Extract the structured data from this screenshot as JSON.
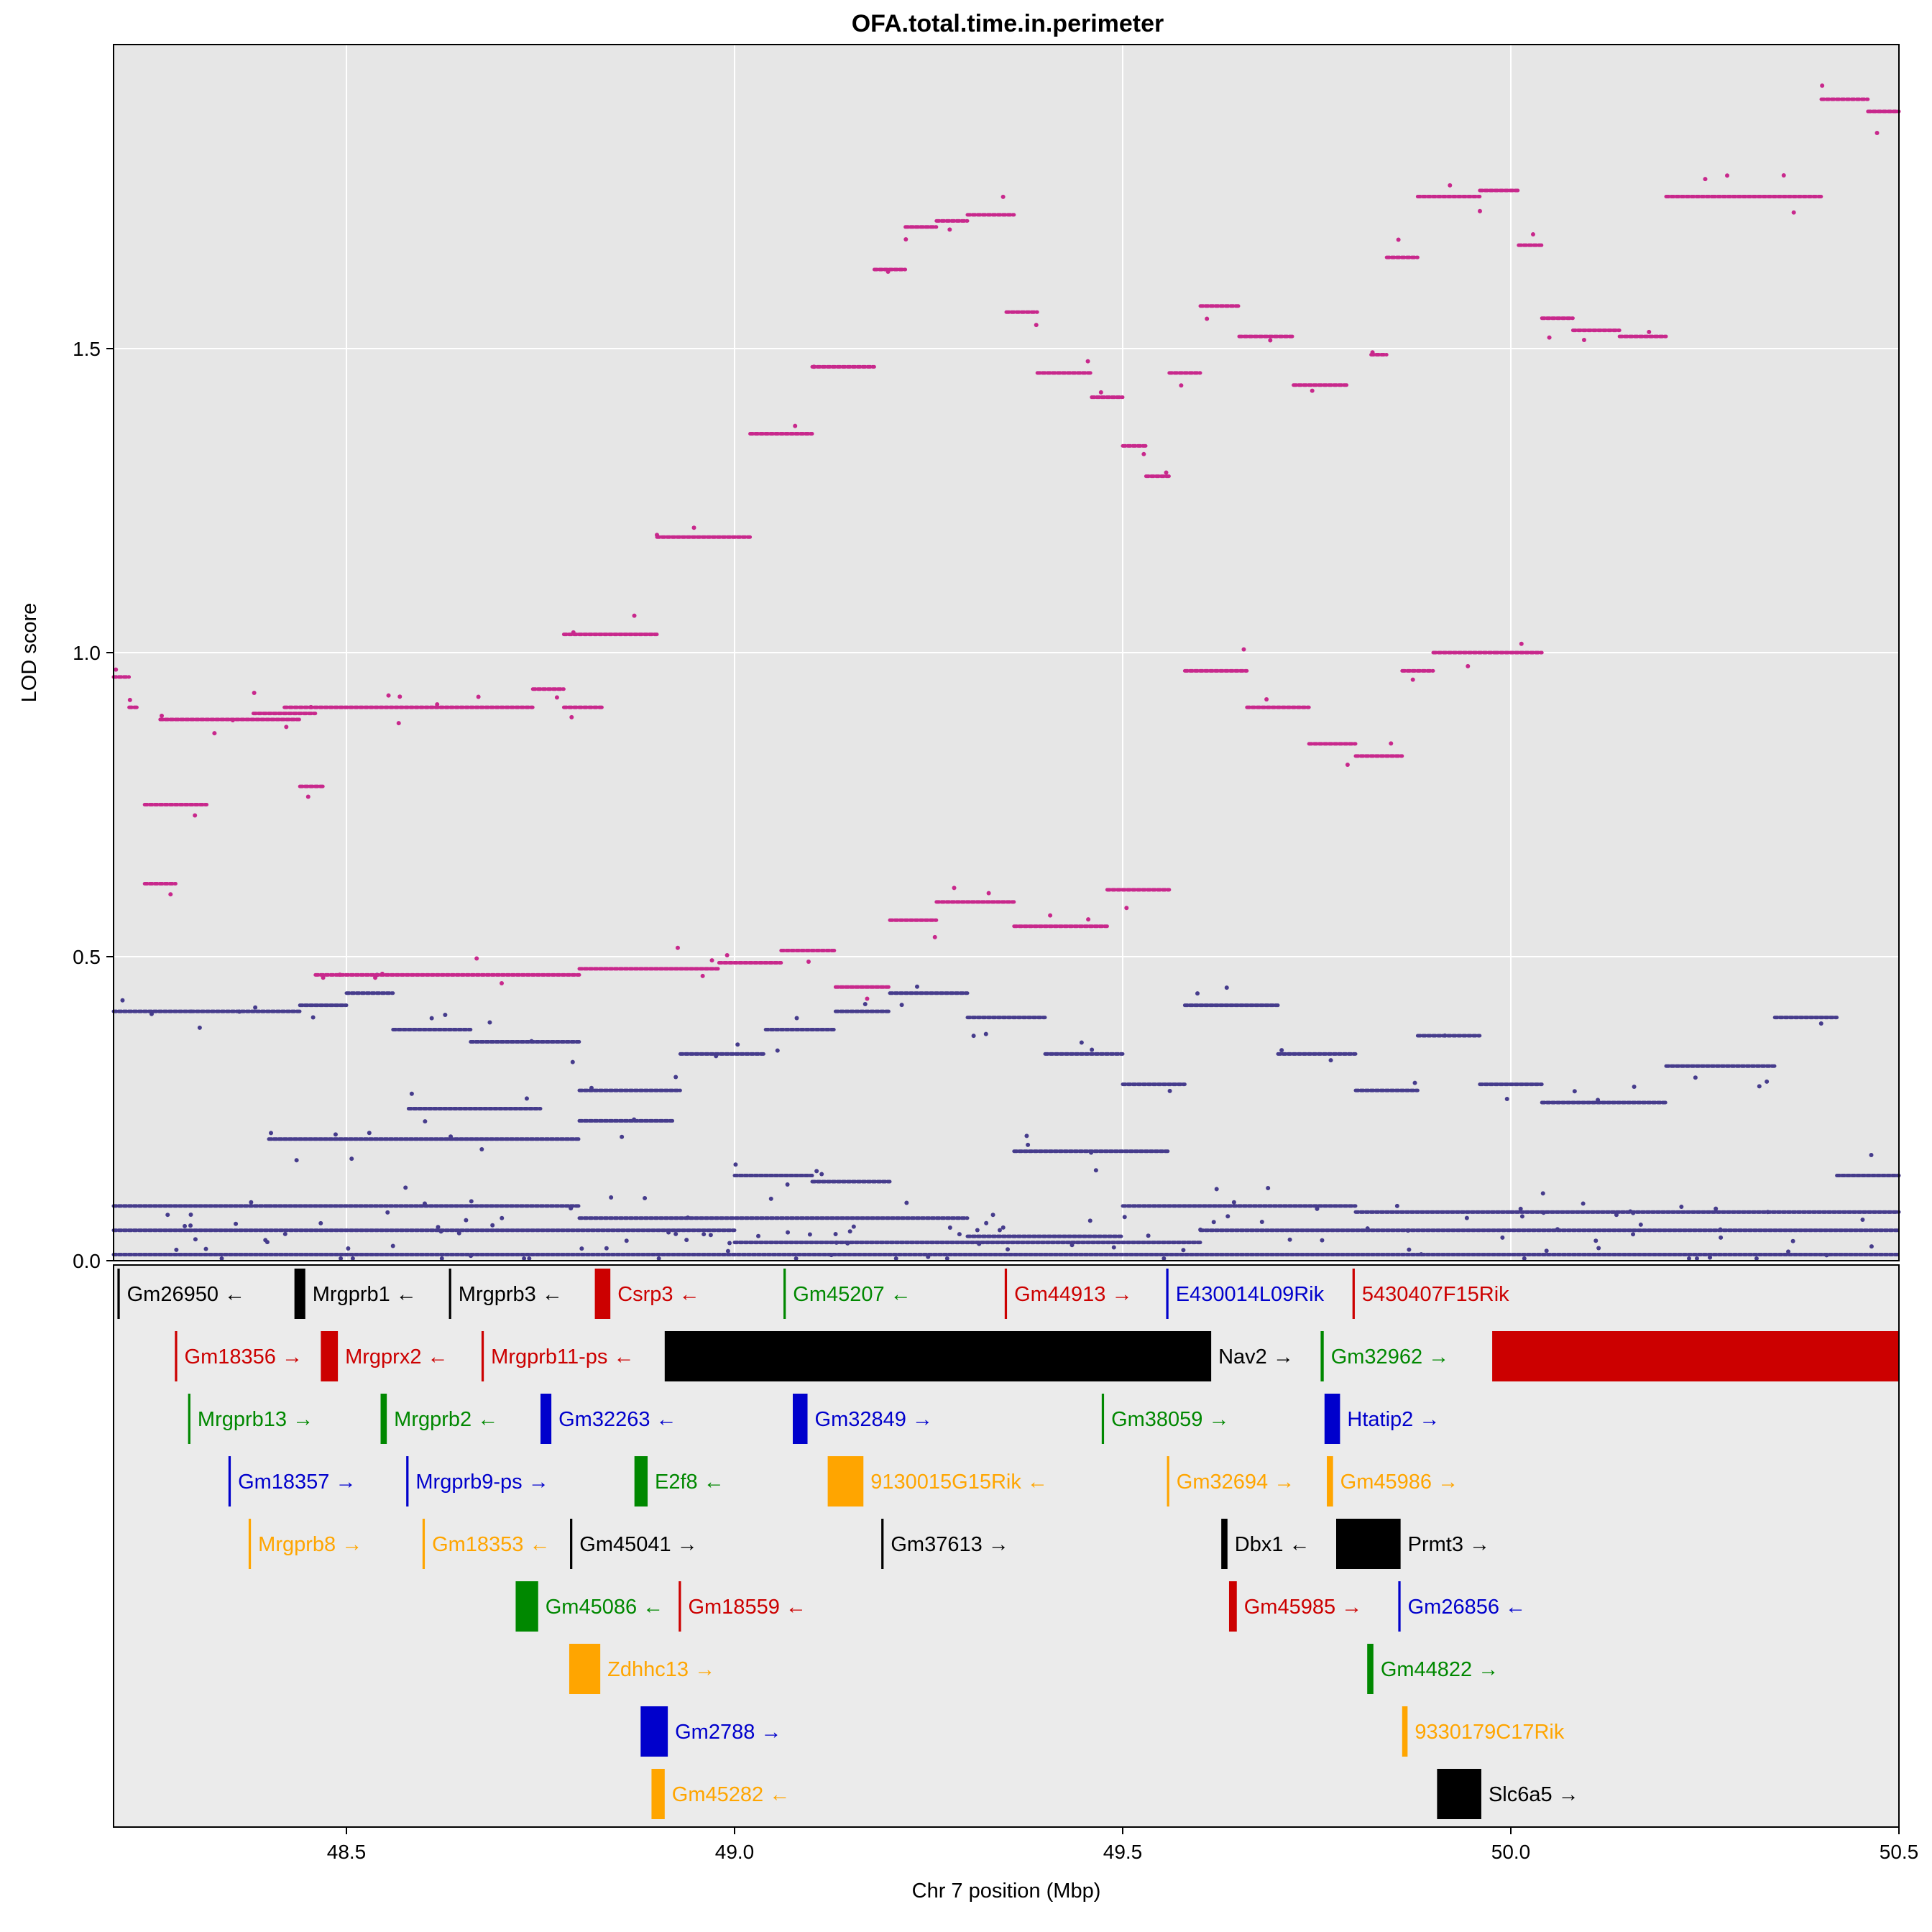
{
  "chart_data": {
    "type": "scatter",
    "title": "OFA.total.time.in.perimeter",
    "xlabel": "Chr 7 position (Mbp)",
    "ylabel": "LOD score",
    "xlim": [
      48.2,
      50.5
    ],
    "ylim": [
      0,
      2.0
    ],
    "xticks": [
      48.5,
      49.0,
      49.5,
      50.0,
      50.5
    ],
    "yticks": [
      0.0,
      0.5,
      1.0,
      1.5
    ],
    "xtick_labels": [
      "48.5",
      "49.0",
      "49.5",
      "50.0",
      "50.5"
    ],
    "ytick_labels": [
      "0.0",
      "0.5",
      "1.0",
      "1.5"
    ],
    "grid": true,
    "colors": {
      "high": "#c8288c",
      "low": "#463c8c",
      "panel": "#e6e6e6"
    },
    "series": [
      {
        "color": "#c8288c",
        "segments": [
          [
            48.2,
            48.22,
            0.96
          ],
          [
            48.22,
            48.23,
            0.91
          ],
          [
            48.26,
            48.28,
            0.89
          ],
          [
            48.28,
            48.44,
            0.89
          ],
          [
            48.44,
            48.47,
            0.78
          ],
          [
            48.42,
            48.74,
            0.91
          ],
          [
            48.74,
            48.78,
            0.94
          ],
          [
            48.78,
            48.83,
            0.91
          ],
          [
            48.78,
            48.9,
            1.03
          ],
          [
            48.9,
            49.02,
            1.19
          ],
          [
            49.02,
            49.1,
            1.36
          ],
          [
            49.1,
            49.18,
            1.47
          ],
          [
            49.18,
            49.22,
            1.63
          ],
          [
            49.22,
            49.26,
            1.7
          ],
          [
            49.26,
            49.3,
            1.71
          ],
          [
            49.3,
            49.36,
            1.72
          ],
          [
            49.35,
            49.39,
            1.56
          ],
          [
            49.39,
            49.46,
            1.46
          ],
          [
            49.46,
            49.5,
            1.42
          ],
          [
            49.5,
            49.53,
            1.34
          ],
          [
            49.53,
            49.56,
            1.29
          ],
          [
            49.56,
            49.6,
            1.46
          ],
          [
            49.6,
            49.65,
            1.57
          ],
          [
            49.65,
            49.72,
            1.52
          ],
          [
            49.72,
            49.79,
            1.44
          ],
          [
            49.82,
            49.84,
            1.49
          ],
          [
            49.84,
            49.88,
            1.65
          ],
          [
            49.88,
            49.96,
            1.75
          ],
          [
            49.96,
            50.01,
            1.76
          ],
          [
            50.01,
            50.04,
            1.67
          ],
          [
            50.04,
            50.08,
            1.55
          ],
          [
            50.08,
            50.14,
            1.53
          ],
          [
            50.14,
            50.2,
            1.52
          ],
          [
            50.2,
            50.26,
            1.75
          ],
          [
            50.26,
            50.4,
            1.75
          ],
          [
            50.4,
            50.46,
            1.91
          ],
          [
            50.46,
            50.5,
            1.89
          ],
          [
            48.38,
            48.46,
            0.9
          ],
          [
            48.46,
            48.8,
            0.47
          ],
          [
            48.8,
            48.98,
            0.48
          ],
          [
            48.98,
            49.06,
            0.49
          ],
          [
            49.06,
            49.13,
            0.51
          ],
          [
            49.13,
            49.2,
            0.45
          ],
          [
            49.2,
            49.26,
            0.56
          ],
          [
            49.26,
            49.36,
            0.59
          ],
          [
            49.36,
            49.48,
            0.55
          ],
          [
            49.48,
            49.56,
            0.61
          ],
          [
            49.58,
            49.66,
            0.97
          ],
          [
            49.66,
            49.74,
            0.91
          ],
          [
            49.74,
            49.8,
            0.85
          ],
          [
            49.8,
            49.86,
            0.83
          ],
          [
            49.86,
            49.9,
            0.97
          ],
          [
            49.9,
            49.98,
            1.0
          ],
          [
            49.98,
            50.04,
            1.0
          ],
          [
            48.24,
            48.32,
            0.75
          ],
          [
            48.24,
            48.28,
            0.62
          ]
        ]
      },
      {
        "color": "#463c8c",
        "segments": [
          [
            48.2,
            48.3,
            0.41
          ],
          [
            48.3,
            48.44,
            0.41
          ],
          [
            48.44,
            48.5,
            0.42
          ],
          [
            48.5,
            48.56,
            0.44
          ],
          [
            48.56,
            48.66,
            0.38
          ],
          [
            48.66,
            48.8,
            0.36
          ],
          [
            48.8,
            48.93,
            0.28
          ],
          [
            48.93,
            49.04,
            0.34
          ],
          [
            49.04,
            49.13,
            0.38
          ],
          [
            49.13,
            49.2,
            0.41
          ],
          [
            49.2,
            49.3,
            0.44
          ],
          [
            49.3,
            49.4,
            0.4
          ],
          [
            49.4,
            49.5,
            0.34
          ],
          [
            49.5,
            49.58,
            0.29
          ],
          [
            49.58,
            49.7,
            0.42
          ],
          [
            49.7,
            49.8,
            0.34
          ],
          [
            49.8,
            49.88,
            0.28
          ],
          [
            49.88,
            49.96,
            0.37
          ],
          [
            49.96,
            50.04,
            0.29
          ],
          [
            50.04,
            50.2,
            0.26
          ],
          [
            50.2,
            50.34,
            0.32
          ],
          [
            50.34,
            50.42,
            0.4
          ],
          [
            50.42,
            50.5,
            0.14
          ],
          [
            48.4,
            48.8,
            0.2
          ],
          [
            48.8,
            48.92,
            0.23
          ],
          [
            48.58,
            48.75,
            0.25
          ],
          [
            48.8,
            49.3,
            0.07
          ],
          [
            49.3,
            49.5,
            0.04
          ],
          [
            49.5,
            49.8,
            0.09
          ],
          [
            49.8,
            50.0,
            0.08
          ],
          [
            50.0,
            50.5,
            0.08
          ],
          [
            48.2,
            48.4,
            0.09
          ],
          [
            48.4,
            48.8,
            0.09
          ],
          [
            48.2,
            50.5,
            0.01
          ],
          [
            48.2,
            49.0,
            0.05
          ],
          [
            49.0,
            49.6,
            0.03
          ],
          [
            49.6,
            50.5,
            0.05
          ],
          [
            49.0,
            49.1,
            0.14
          ],
          [
            49.1,
            49.2,
            0.13
          ],
          [
            49.36,
            49.56,
            0.18
          ]
        ]
      }
    ]
  },
  "genes": [
    {
      "name": "Gm26950",
      "start": 48.205,
      "end": 48.208,
      "row": 0,
      "strand": "←",
      "color": "#000000"
    },
    {
      "name": "Mrgprb1",
      "start": 48.433,
      "end": 48.447,
      "row": 0,
      "strand": "←",
      "color": "#000000"
    },
    {
      "name": "Mrgprb3",
      "start": 48.632,
      "end": 48.635,
      "row": 0,
      "strand": "←",
      "color": "#000000"
    },
    {
      "name": "Csrp3",
      "start": 48.82,
      "end": 48.84,
      "row": 0,
      "strand": "←",
      "color": "#cc0000"
    },
    {
      "name": "Gm45207",
      "start": 49.063,
      "end": 49.066,
      "row": 0,
      "strand": "←",
      "color": "#008800"
    },
    {
      "name": "Gm44913",
      "start": 49.348,
      "end": 49.351,
      "row": 0,
      "strand": "→",
      "color": "#cc0000"
    },
    {
      "name": "E430014L09Rik",
      "start": 49.556,
      "end": 49.559,
      "row": 0,
      "strand": "",
      "color": "#0000cc"
    },
    {
      "name": "5430407F15Rik",
      "start": 49.796,
      "end": 49.799,
      "row": 0,
      "strand": "",
      "color": "#cc0000"
    },
    {
      "name": "Gm18356",
      "start": 48.279,
      "end": 48.282,
      "row": 1,
      "strand": "→",
      "color": "#cc0000"
    },
    {
      "name": "Mrgprx2",
      "start": 48.467,
      "end": 48.489,
      "row": 1,
      "strand": "←",
      "color": "#cc0000"
    },
    {
      "name": "Mrgprb11-ps",
      "start": 48.674,
      "end": 48.677,
      "row": 1,
      "strand": "←",
      "color": "#cc0000"
    },
    {
      "name": "Nav2",
      "start": 48.91,
      "end": 49.614,
      "row": 1,
      "strand": "→",
      "color": "#000000"
    },
    {
      "name": "Gm32962",
      "start": 49.755,
      "end": 49.759,
      "row": 1,
      "strand": "→",
      "color": "#008800"
    },
    {
      "name": "",
      "start": 49.976,
      "end": 50.5,
      "row": 1,
      "strand": "",
      "color": "#cc0000"
    },
    {
      "name": "Mrgprb13",
      "start": 48.296,
      "end": 48.299,
      "row": 2,
      "strand": "→",
      "color": "#008800"
    },
    {
      "name": "Mrgprb2",
      "start": 48.544,
      "end": 48.552,
      "row": 2,
      "strand": "←",
      "color": "#008800"
    },
    {
      "name": "Gm32263",
      "start": 48.75,
      "end": 48.764,
      "row": 2,
      "strand": "←",
      "color": "#0000cc"
    },
    {
      "name": "Gm32849",
      "start": 49.075,
      "end": 49.094,
      "row": 2,
      "strand": "→",
      "color": "#0000cc"
    },
    {
      "name": "Gm38059",
      "start": 49.473,
      "end": 49.476,
      "row": 2,
      "strand": "→",
      "color": "#008800"
    },
    {
      "name": "Htatip2",
      "start": 49.76,
      "end": 49.78,
      "row": 2,
      "strand": "→",
      "color": "#0000cc"
    },
    {
      "name": "Gm18357",
      "start": 48.348,
      "end": 48.351,
      "row": 3,
      "strand": "→",
      "color": "#0000cc"
    },
    {
      "name": "Mrgprb9-ps",
      "start": 48.577,
      "end": 48.58,
      "row": 3,
      "strand": "→",
      "color": "#0000cc"
    },
    {
      "name": "E2f8",
      "start": 48.871,
      "end": 48.888,
      "row": 3,
      "strand": "←",
      "color": "#008800"
    },
    {
      "name": "9130015G15Rik",
      "start": 49.12,
      "end": 49.166,
      "row": 3,
      "strand": "←",
      "color": "#ffa500"
    },
    {
      "name": "Gm32694",
      "start": 49.557,
      "end": 49.56,
      "row": 3,
      "strand": "→",
      "color": "#ffa500"
    },
    {
      "name": "Gm45986",
      "start": 49.763,
      "end": 49.771,
      "row": 3,
      "strand": "→",
      "color": "#ffa500"
    },
    {
      "name": "Mrgprb8",
      "start": 48.374,
      "end": 48.377,
      "row": 4,
      "strand": "→",
      "color": "#ffa500"
    },
    {
      "name": "Gm18353",
      "start": 48.598,
      "end": 48.601,
      "row": 4,
      "strand": "←",
      "color": "#ffa500"
    },
    {
      "name": "Gm45041",
      "start": 48.788,
      "end": 48.791,
      "row": 4,
      "strand": "→",
      "color": "#000000"
    },
    {
      "name": "Gm37613",
      "start": 49.189,
      "end": 49.192,
      "row": 4,
      "strand": "→",
      "color": "#000000"
    },
    {
      "name": "Dbx1",
      "start": 49.627,
      "end": 49.635,
      "row": 4,
      "strand": "←",
      "color": "#000000"
    },
    {
      "name": "Prmt3",
      "start": 49.775,
      "end": 49.858,
      "row": 4,
      "strand": "→",
      "color": "#000000"
    },
    {
      "name": "Gm45086",
      "start": 48.718,
      "end": 48.747,
      "row": 5,
      "strand": "←",
      "color": "#008800"
    },
    {
      "name": "Gm18559",
      "start": 48.928,
      "end": 48.931,
      "row": 5,
      "strand": "←",
      "color": "#cc0000"
    },
    {
      "name": "Gm45985",
      "start": 49.637,
      "end": 49.647,
      "row": 5,
      "strand": "→",
      "color": "#cc0000"
    },
    {
      "name": "Gm26856",
      "start": 49.855,
      "end": 49.858,
      "row": 5,
      "strand": "←",
      "color": "#0000cc"
    },
    {
      "name": "Zdhhc13",
      "start": 48.787,
      "end": 48.827,
      "row": 6,
      "strand": "→",
      "color": "#ffa500"
    },
    {
      "name": "Gm44822",
      "start": 49.815,
      "end": 49.823,
      "row": 6,
      "strand": "→",
      "color": "#008800"
    },
    {
      "name": "Gm2788",
      "start": 48.879,
      "end": 48.914,
      "row": 7,
      "strand": "→",
      "color": "#0000cc"
    },
    {
      "name": "9330179C17Rik",
      "start": 49.86,
      "end": 49.867,
      "row": 7,
      "strand": "",
      "color": "#ffa500"
    },
    {
      "name": "Gm45282",
      "start": 48.893,
      "end": 48.91,
      "row": 8,
      "strand": "←",
      "color": "#ffa500"
    },
    {
      "name": "Slc6a5",
      "start": 49.905,
      "end": 49.962,
      "row": 8,
      "strand": "→",
      "color": "#000000"
    }
  ]
}
